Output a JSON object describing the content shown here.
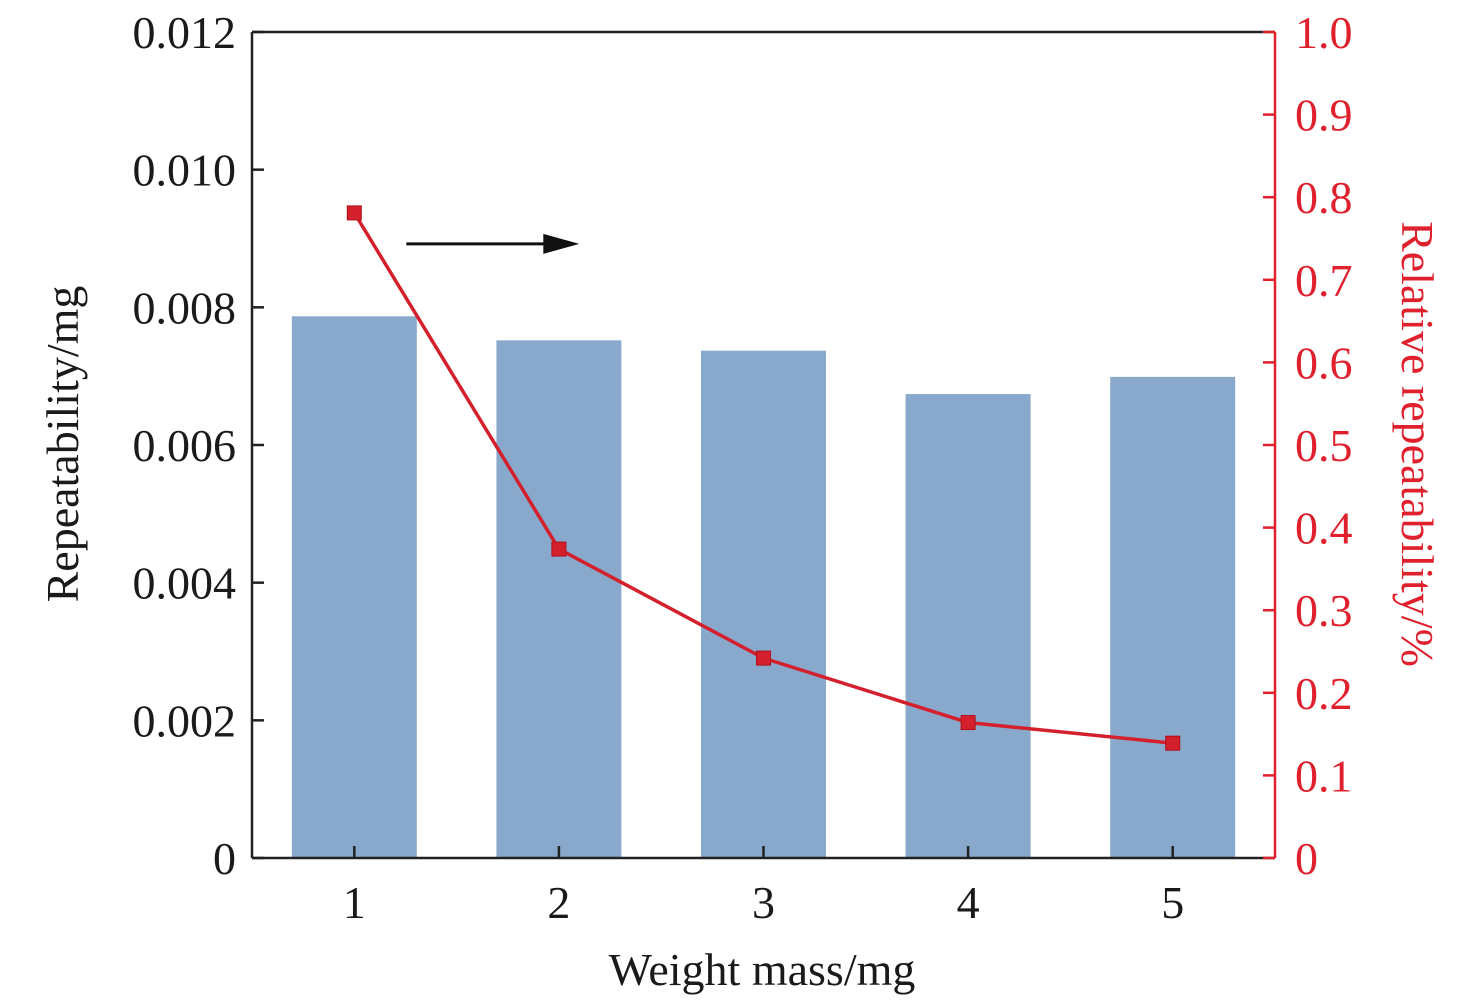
{
  "chart_data": {
    "type": "bar",
    "xlabel": "Weight mass/mg",
    "ylabel": "Repeatability/mg",
    "y2label": "Relative repeatability/%",
    "categories": [
      "1",
      "2",
      "3",
      "4",
      "5"
    ],
    "ylim": [
      0,
      0.012
    ],
    "y2lim": [
      0,
      1.0
    ],
    "y_ticks": [
      "0",
      "0.002",
      "0.004",
      "0.006",
      "0.008",
      "0.010",
      "0.012"
    ],
    "y2_ticks": [
      "0",
      "0.1",
      "0.2",
      "0.3",
      "0.4",
      "0.5",
      "0.6",
      "0.7",
      "0.8",
      "0.9",
      "1.0"
    ],
    "series": [
      {
        "type": "bar",
        "axis": "left",
        "color": "#88a9cc",
        "values": [
          0.00787,
          0.00752,
          0.00737,
          0.00674,
          0.00699
        ]
      },
      {
        "type": "line",
        "axis": "right",
        "color": "#d4202c",
        "values": [
          0.781,
          0.374,
          0.242,
          0.164,
          0.139
        ]
      }
    ],
    "annotation": {
      "type": "arrow",
      "direction": "right",
      "points_to_axis": "right",
      "color": "#000000"
    },
    "right_axis_color": "#e0202c",
    "grid": false
  }
}
